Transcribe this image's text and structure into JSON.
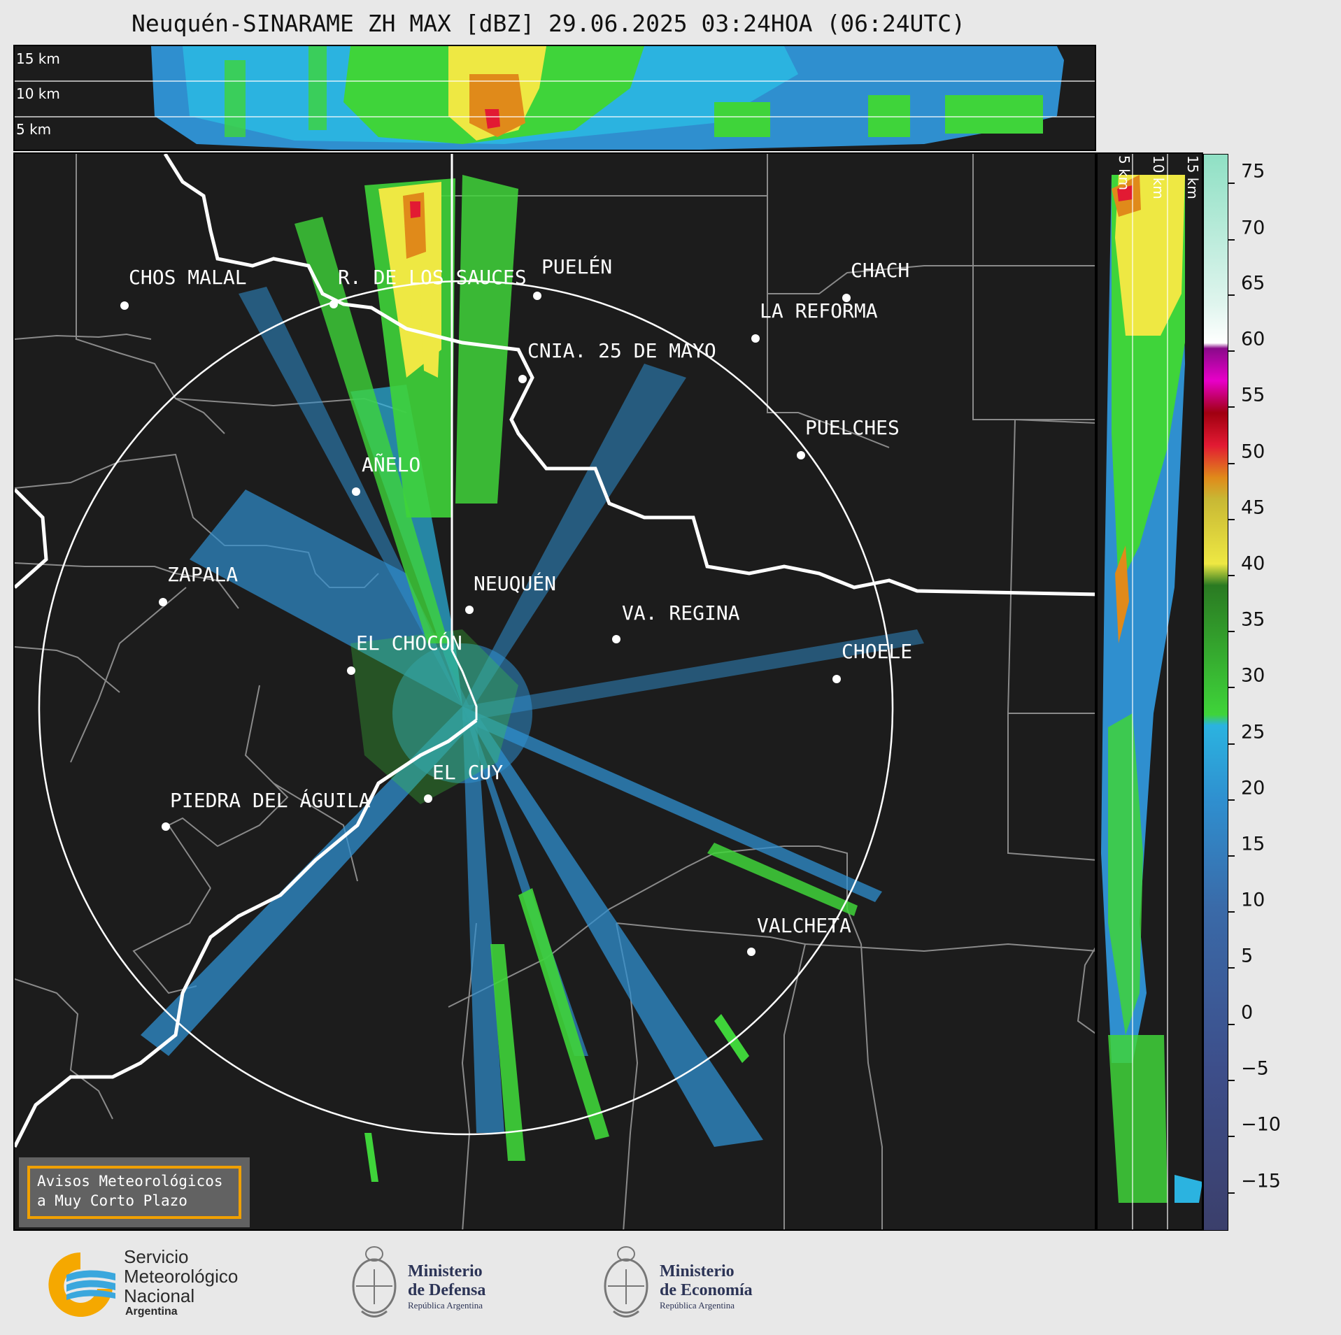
{
  "title": "Neuquén-SINARAME ZH MAX [dBZ] 29.06.2025 03:24HOA (06:24UTC)",
  "top_panel": {
    "altitudes": [
      "15 km",
      "10 km",
      "5 km"
    ]
  },
  "side_panel": {
    "altitudes": [
      "5 km",
      "10 km",
      "15 km"
    ]
  },
  "colorbar": {
    "unit": "dBZ",
    "ticks": [
      "75",
      "70",
      "65",
      "60",
      "55",
      "50",
      "45",
      "40",
      "35",
      "30",
      "25",
      "20",
      "15",
      "10",
      "5",
      "0",
      "−5",
      "−10",
      "−15"
    ],
    "range": [
      -20,
      77
    ],
    "colors": {
      "navy": "#3b3f6b",
      "blue": "#2f8fcf",
      "cyan": "#2bb3e0",
      "green": "#3fd43a",
      "darkgreen": "#2a7a22",
      "yellow": "#eee843",
      "olive": "#c8b834",
      "orange": "#e08a1a",
      "red": "#e21a33",
      "darkred": "#a00010",
      "magenta": "#e800c8",
      "purple": "#8a0a8a",
      "white": "#ffffff",
      "mint": "#8fe0c4"
    }
  },
  "cities": [
    {
      "name": "CHOS MALAL"
    },
    {
      "name": "R. DE LOS SAUCES"
    },
    {
      "name": "PUELÉN"
    },
    {
      "name": "CHACH"
    },
    {
      "name": "LA REFORMA"
    },
    {
      "name": "CNIA. 25 DE MAYO"
    },
    {
      "name": "PUELCHES"
    },
    {
      "name": "AÑELO"
    },
    {
      "name": "ZAPALA"
    },
    {
      "name": "NEUQUÉN"
    },
    {
      "name": "VA. REGINA"
    },
    {
      "name": "EL CHOCÓN"
    },
    {
      "name": "CHOELE"
    },
    {
      "name": "EL CUY"
    },
    {
      "name": "PIEDRA DEL ÁGUILA"
    },
    {
      "name": "VALCHETA"
    }
  ],
  "warning": {
    "line1": "Avisos Meteorológicos",
    "line2": "a Muy Corto Plazo"
  },
  "logos": {
    "smn": {
      "line1": "Servicio",
      "line2": "Meteorológico",
      "line3": "Nacional",
      "line4": "Argentina"
    },
    "defensa": {
      "line1": "Ministerio",
      "line2": "de Defensa",
      "line3": "República Argentina"
    },
    "economia": {
      "line1": "Ministerio",
      "line2": "de Economía",
      "line3": "República Argentina"
    }
  }
}
